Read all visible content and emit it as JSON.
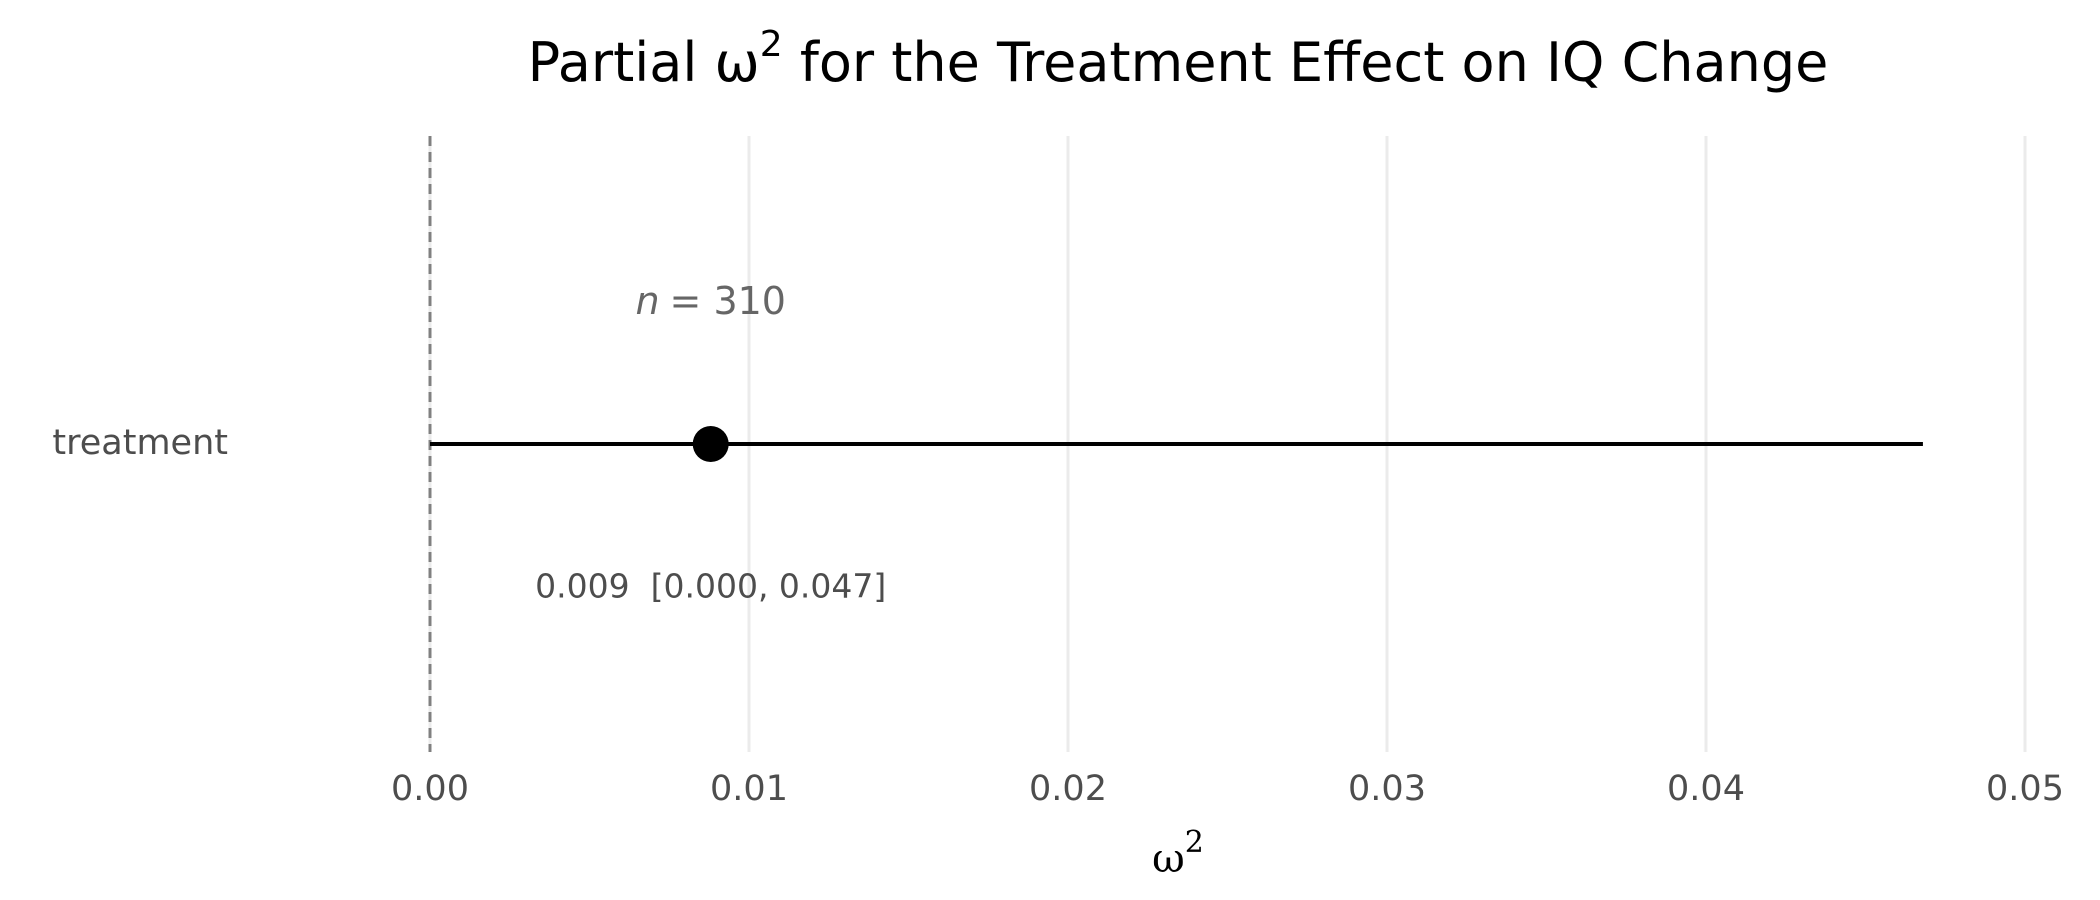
{
  "chart_data": {
    "type": "forest",
    "title": [
      "Partial ω",
      "2",
      " for the Treatment Effect on IQ Change"
    ],
    "x_label": [
      "ω",
      "2"
    ],
    "categories": [
      "treatment"
    ],
    "values": [
      0.0088
    ],
    "ci_low": [
      0.0
    ],
    "ci_high": [
      0.0468
    ],
    "value_labels": [
      "0.009  [0.000, 0.047]"
    ],
    "annotation": [
      "n",
      "= 310"
    ],
    "color": "#000000",
    "reference_line": 0,
    "xlim": [
      0,
      0.05
    ],
    "xticks": [
      {
        "value": 0,
        "label": "0.00"
      },
      {
        "value": 0.01,
        "label": "0.01"
      },
      {
        "value": 0.02,
        "label": "0.02"
      },
      {
        "value": 0.03,
        "label": "0.03"
      },
      {
        "value": 0.04,
        "label": "0.04"
      },
      {
        "value": 0.05,
        "label": "0.05"
      }
    ],
    "grid": true
  }
}
